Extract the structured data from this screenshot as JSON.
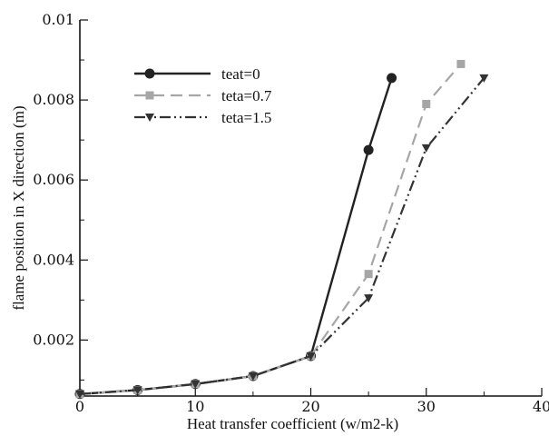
{
  "chart_data": {
    "type": "line",
    "xlabel": "Heat transfer coefficient (w/m2-k)",
    "ylabel": "flame position in X direction (m)",
    "xlim": [
      0,
      40
    ],
    "ylim": [
      0.0006,
      0.01
    ],
    "xticks": [
      0,
      10,
      20,
      30,
      40
    ],
    "xtick_labels": [
      "0",
      "10",
      "20",
      "30",
      "40"
    ],
    "yticks": [
      0.002,
      0.004,
      0.006,
      0.008,
      0.01
    ],
    "ytick_labels": [
      "0.002",
      "0.004",
      "0.006",
      "0.008",
      "0.01"
    ],
    "grid": false,
    "legend_position": "top-left",
    "series": [
      {
        "name": "teat=0",
        "color": "#222222",
        "line_style": "solid",
        "marker": "circle",
        "x": [
          0,
          5,
          10,
          15,
          20,
          25,
          27
        ],
        "y": [
          0.00065,
          0.00075,
          0.0009,
          0.0011,
          0.0016,
          0.00675,
          0.00855
        ]
      },
      {
        "name": "teta=0.7",
        "color": "#a6a6a6",
        "line_style": "dashed",
        "marker": "square",
        "x": [
          0,
          5,
          10,
          15,
          20,
          25,
          30,
          33
        ],
        "y": [
          0.00065,
          0.00075,
          0.0009,
          0.0011,
          0.0016,
          0.00365,
          0.0079,
          0.0089
        ]
      },
      {
        "name": "teta=1.5",
        "color": "#333333",
        "line_style": "dashdotdot",
        "marker": "triangle-down",
        "x": [
          0,
          5,
          10,
          15,
          20,
          25,
          30,
          35
        ],
        "y": [
          0.00065,
          0.00075,
          0.0009,
          0.0011,
          0.0016,
          0.00305,
          0.0068,
          0.00855
        ]
      }
    ]
  }
}
